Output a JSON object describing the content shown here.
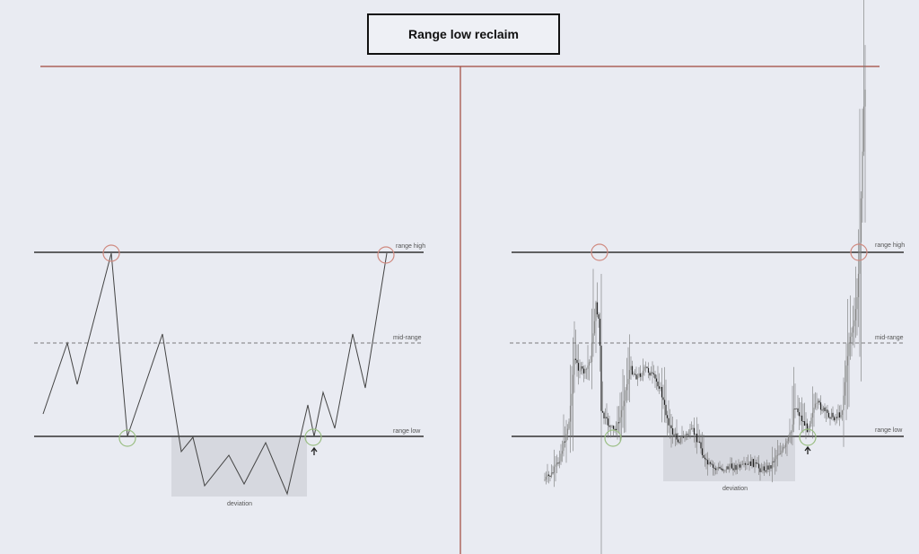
{
  "title": "Range low reclaim",
  "labels": {
    "range_high": "range high",
    "mid_range": "mid-range",
    "range_low": "range low",
    "deviation": "deviation"
  },
  "colors": {
    "background": "#e9ebf2",
    "divider": "#a0473c",
    "range_line": "#333333",
    "deviation_box": "#d6d8df",
    "high_circle": "#d08a80",
    "low_circle": "#9bbf85",
    "price": "#444444"
  },
  "icons": [
    "up-arrow-icon"
  ]
}
